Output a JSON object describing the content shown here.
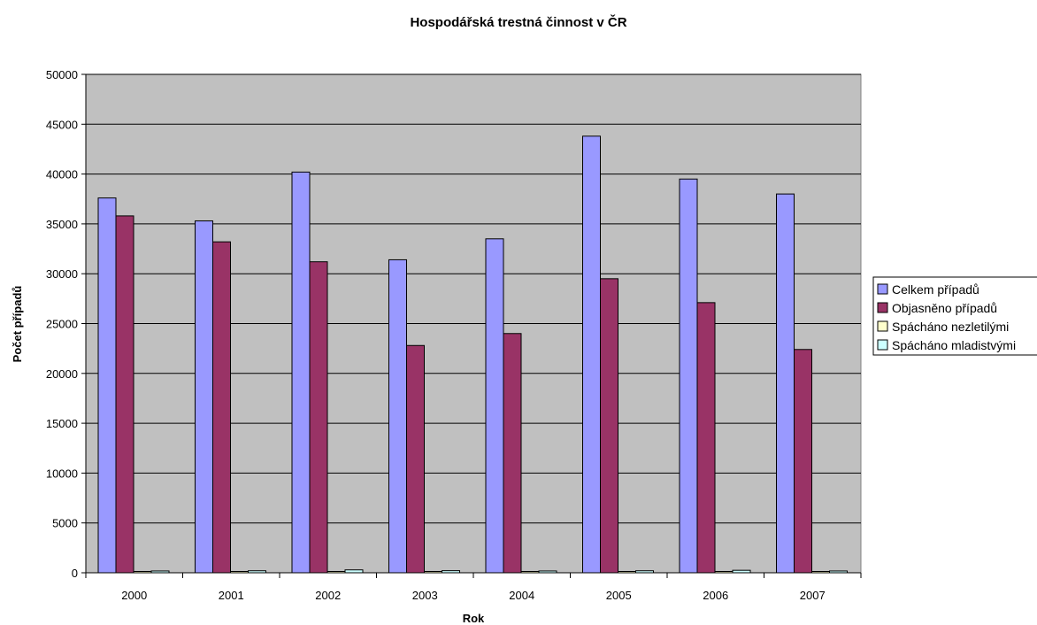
{
  "chart_data": {
    "type": "bar",
    "title": "Hospodářská trestná činnost v ČR",
    "xlabel": "Rok",
    "ylabel": "Počet případů",
    "ylim": [
      0,
      50000
    ],
    "yticks": [
      0,
      5000,
      10000,
      15000,
      20000,
      25000,
      30000,
      35000,
      40000,
      45000,
      50000
    ],
    "grid": true,
    "legend_position": "right",
    "categories": [
      "2000",
      "2001",
      "2002",
      "2003",
      "2004",
      "2005",
      "2006",
      "2007"
    ],
    "series": [
      {
        "name": "Celkem případů",
        "color": "#9999ff",
        "values": [
          37600,
          35300,
          40200,
          31400,
          33500,
          43800,
          39500,
          38000
        ]
      },
      {
        "name": "Objasněno případů",
        "color": "#993366",
        "values": [
          35800,
          33200,
          31200,
          22800,
          24000,
          29500,
          27100,
          22400
        ]
      },
      {
        "name": "Spácháno nezletilými",
        "color": "#ffffcc",
        "values": [
          100,
          80,
          100,
          120,
          100,
          90,
          100,
          80
        ]
      },
      {
        "name": "Spácháno mladistvými",
        "color": "#ccffff",
        "values": [
          180,
          200,
          290,
          210,
          180,
          200,
          250,
          180
        ]
      }
    ],
    "plot_background": "#c0c0c0"
  }
}
